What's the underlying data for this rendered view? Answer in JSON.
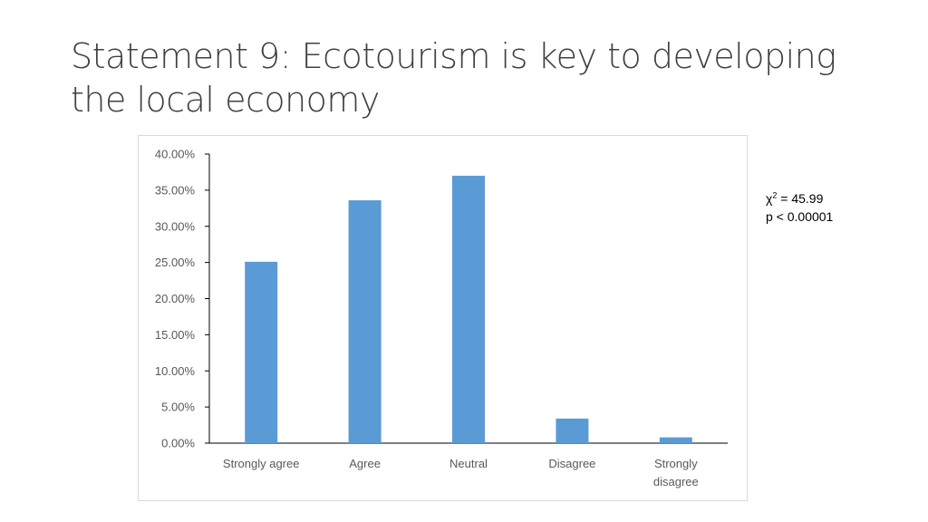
{
  "slide": {
    "title_line1": "Statement 9:  Ecotourism is key to developing",
    "title_line2": "the local economy"
  },
  "stats": {
    "chi_symbol": "χ",
    "chi_power": "2",
    "chi_value": " = 45.99",
    "p_value": "p < 0.00001"
  },
  "chart_data": {
    "type": "bar",
    "categories": [
      "Strongly agree",
      "Agree",
      "Neutral",
      "Disagree",
      "Strongly disagree"
    ],
    "category_lines": [
      [
        "Strongly agree"
      ],
      [
        "Agree"
      ],
      [
        "Neutral"
      ],
      [
        "Disagree"
      ],
      [
        "Strongly",
        "disagree"
      ]
    ],
    "values": [
      25.1,
      33.6,
      37.0,
      3.4,
      0.8
    ],
    "ylim": [
      0,
      40
    ],
    "yticks": [
      0,
      5,
      10,
      15,
      20,
      25,
      30,
      35,
      40
    ],
    "ytick_labels": [
      "0.00%",
      "5.00%",
      "10.00%",
      "15.00%",
      "20.00%",
      "25.00%",
      "30.00%",
      "35.00%",
      "40.00%"
    ],
    "bar_color": "#5b9bd5",
    "axis_color": "#000000",
    "grid": false,
    "title": "",
    "xlabel": "",
    "ylabel": ""
  }
}
